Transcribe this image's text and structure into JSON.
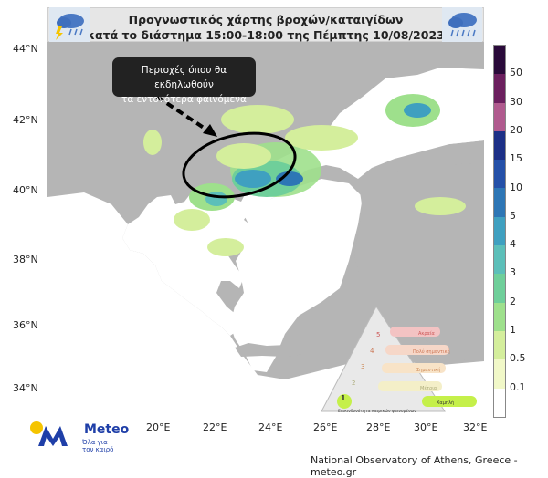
{
  "header": {
    "title_line1": "Προγνωστικός χάρτης βροχών/καταιγίδων",
    "title_line2": "κατά το διάστημα  15:00-18:00 της Πέμπτης 10/08/2023"
  },
  "icons": {
    "left": "thunderstorm-cloud-icon",
    "right": "rain-cloud-icon"
  },
  "callout": {
    "line1": "Περιοχές όπου θα εκδηλωθούν",
    "line2": "τα εντονότερα φαινόμενα"
  },
  "axes": {
    "lat_labels": [
      "44°N",
      "42°N",
      "40°N",
      "38°N",
      "36°N",
      "34°N"
    ],
    "lon_labels": [
      "20°E",
      "22°E",
      "24°E",
      "26°E",
      "28°E",
      "30°E",
      "32°E"
    ]
  },
  "colorbar": {
    "labels": [
      "50",
      "30",
      "20",
      "15",
      "10",
      "5",
      "4",
      "3",
      "2",
      "1",
      "0.5",
      "0.1"
    ],
    "colors": [
      "#2a0a3a",
      "#6b1f5e",
      "#b05a8e",
      "#1c2f86",
      "#2450a8",
      "#2d76b5",
      "#3fa0c0",
      "#5cbfb9",
      "#6fcf9a",
      "#9ee08c",
      "#d4ee9c",
      "#f1f8c8",
      "#ffffff"
    ]
  },
  "risk_triangle": {
    "level_labels": [
      "Ακραία",
      "Πολύ σημαντική",
      "Σημαντική",
      "Μέτρια",
      "Χαμηλή"
    ],
    "level_numbers": [
      "5",
      "4",
      "3",
      "2",
      "1"
    ],
    "caption": "Επικινδυνότητα καιρικών φαινομένων"
  },
  "logo": {
    "name": "Meteo",
    "tagline1": "Όλα για",
    "tagline2": "τον καιρό"
  },
  "footer": {
    "credit": "National Observatory of Athens, Greece - meteo.gr"
  },
  "colors": {
    "land": "#b5b5b5",
    "sea": "#ffffff",
    "header_bg": "#e6e6e6",
    "brand_blue": "#1f3fa8",
    "logo_yellow": "#f5c400"
  }
}
